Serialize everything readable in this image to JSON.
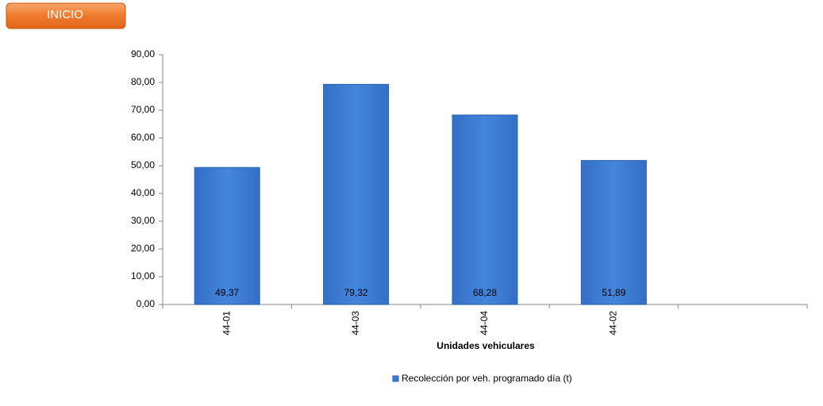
{
  "nav": {
    "button": "INICIO"
  },
  "chart_data": {
    "type": "bar",
    "x_label": "Unidades vehiculares",
    "categories": [
      "44-01",
      "44-03",
      "44-04",
      "44-02",
      null
    ],
    "series": [
      {
        "name": "Recolección por veh. programado día (t)",
        "color": "#3b7dd8",
        "values": [
          49.37,
          79.32,
          68.28,
          51.89,
          null
        ],
        "value_labels": [
          "49,37",
          "79,32",
          "68,28",
          "51,89",
          null
        ]
      }
    ],
    "ylim": [
      0,
      90
    ],
    "yticks": [
      {
        "value": 0,
        "label": "0,00"
      },
      {
        "value": 10,
        "label": "10,00"
      },
      {
        "value": 20,
        "label": "20,00"
      },
      {
        "value": 30,
        "label": "30,00"
      },
      {
        "value": 40,
        "label": "40,00"
      },
      {
        "value": 50,
        "label": "50,00"
      },
      {
        "value": 60,
        "label": "60,00"
      },
      {
        "value": 70,
        "label": "70,00"
      },
      {
        "value": 80,
        "label": "80,00"
      },
      {
        "value": 90,
        "label": "90,00"
      }
    ],
    "grid": false,
    "legend": "bottom"
  }
}
